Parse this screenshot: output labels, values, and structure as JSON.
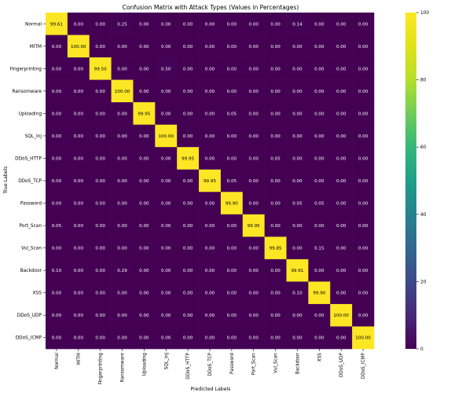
{
  "chart_data": {
    "type": "heatmap",
    "title": "Confusion Matrix with Attack Types (Values in Percentages)",
    "xlabel": "Predicted Labels",
    "ylabel": "True Labels",
    "labels": [
      "Normal",
      "MITM",
      "Fingerprinting",
      "Ransomware",
      "Uploading",
      "SQL_Inj",
      "DDoS_HTTP",
      "DDoS_TCP",
      "Password",
      "Port_Scan",
      "Vul_Scan",
      "Backdoor",
      "XSS",
      "DDoS_UDP",
      "DDoS_ICMP"
    ],
    "matrix": [
      [
        "99.61",
        "0.00",
        "0.00",
        "0.25",
        "0.00",
        "0.00",
        "0.00",
        "0.00",
        "0.00",
        "0.00",
        "0.00",
        "0.14",
        "0.00",
        "0.00",
        "0.00"
      ],
      [
        "0.00",
        "100.00",
        "0.00",
        "0.00",
        "0.00",
        "0.00",
        "0.00",
        "0.00",
        "0.00",
        "0.00",
        "0.00",
        "0.00",
        "0.00",
        "0.00",
        "0.00"
      ],
      [
        "0.00",
        "0.00",
        "99.50",
        "0.00",
        "0.00",
        "0.50",
        "0.00",
        "0.00",
        "0.00",
        "0.00",
        "0.00",
        "0.00",
        "0.00",
        "0.00",
        "0.00"
      ],
      [
        "0.00",
        "0.00",
        "0.00",
        "100.00",
        "0.00",
        "0.00",
        "0.00",
        "0.00",
        "0.00",
        "0.00",
        "0.00",
        "0.00",
        "0.00",
        "0.00",
        "0.00"
      ],
      [
        "0.00",
        "0.00",
        "0.00",
        "0.00",
        "99.95",
        "0.00",
        "0.00",
        "0.00",
        "0.05",
        "0.00",
        "0.00",
        "0.00",
        "0.00",
        "0.00",
        "0.00"
      ],
      [
        "0.00",
        "0.00",
        "0.00",
        "0.00",
        "0.00",
        "100.00",
        "0.00",
        "0.00",
        "0.00",
        "0.00",
        "0.00",
        "0.00",
        "0.00",
        "0.00",
        "0.00"
      ],
      [
        "0.00",
        "0.00",
        "0.00",
        "0.00",
        "0.00",
        "0.00",
        "99.95",
        "0.00",
        "0.00",
        "0.00",
        "0.05",
        "0.00",
        "0.00",
        "0.00",
        "0.00"
      ],
      [
        "0.00",
        "0.00",
        "0.00",
        "0.00",
        "0.00",
        "0.00",
        "0.00",
        "99.95",
        "0.05",
        "0.00",
        "0.00",
        "0.00",
        "0.00",
        "0.00",
        "0.00"
      ],
      [
        "0.00",
        "0.00",
        "0.00",
        "0.00",
        "0.00",
        "0.00",
        "0.00",
        "0.00",
        "99.90",
        "0.00",
        "0.00",
        "0.05",
        "0.05",
        "0.00",
        "0.00"
      ],
      [
        "0.05",
        "0.00",
        "0.00",
        "0.00",
        "0.00",
        "0.00",
        "0.00",
        "0.00",
        "0.00",
        "99.95",
        "0.00",
        "0.00",
        "0.00",
        "0.00",
        "0.00"
      ],
      [
        "0.00",
        "0.00",
        "0.00",
        "0.00",
        "0.00",
        "0.00",
        "0.00",
        "0.00",
        "0.00",
        "0.00",
        "99.85",
        "0.00",
        "0.15",
        "0.00",
        "0.00"
      ],
      [
        "0.10",
        "0.00",
        "0.00",
        "0.29",
        "0.00",
        "0.00",
        "0.00",
        "0.00",
        "0.00",
        "0.00",
        "0.00",
        "99.61",
        "0.00",
        "0.00",
        "0.00"
      ],
      [
        "0.00",
        "0.00",
        "0.00",
        "0.00",
        "0.00",
        "0.00",
        "0.00",
        "0.00",
        "0.00",
        "0.00",
        "0.00",
        "0.10",
        "99.90",
        "0.00",
        "0.00"
      ],
      [
        "0.00",
        "0.00",
        "0.00",
        "0.00",
        "0.00",
        "0.00",
        "0.00",
        "0.00",
        "0.00",
        "0.00",
        "0.00",
        "0.00",
        "0.00",
        "100.00",
        "0.00"
      ],
      [
        "0.00",
        "0.00",
        "0.00",
        "0.00",
        "0.00",
        "0.00",
        "0.00",
        "0.00",
        "0.00",
        "0.00",
        "0.00",
        "0.00",
        "0.00",
        "0.00",
        "100.00"
      ]
    ],
    "colorbar": {
      "min": 0,
      "max": 100,
      "ticks": [
        "0",
        "20",
        "40",
        "60",
        "80",
        "100"
      ],
      "colormap": "viridis"
    },
    "colors": {
      "low": "#440154",
      "high": "#fde725"
    }
  }
}
